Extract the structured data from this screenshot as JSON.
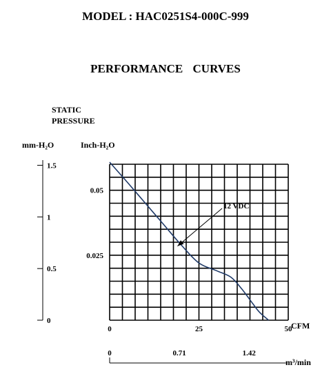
{
  "header": {
    "model": "MODEL : HAC0251S4-000C-999",
    "title": "PERFORMANCE    CURVES"
  },
  "y_axis": {
    "label_line1": "STATIC",
    "label_line2": "PRESSURE",
    "unit_mm": "mm-H₂O",
    "unit_inch": "Inch-H₂O"
  },
  "x_axis": {
    "unit_cfm": "CFM",
    "unit_cmm": "m³/min"
  },
  "annotation": {
    "label": "12 VDC"
  },
  "chart_data": {
    "type": "line",
    "title": "PERFORMANCE    CURVES",
    "xlabel": "CFM",
    "ylabel": "STATIC PRESSURE",
    "xlim": [
      0,
      50
    ],
    "ylim": [
      0,
      0.06
    ],
    "x_ticks": [
      "0",
      "25",
      "50"
    ],
    "y_ticks": [
      "0.025",
      "0.05"
    ],
    "secondary_x": {
      "label": "m³/min",
      "ticks": [
        {
          "value": 0,
          "label": "0"
        },
        {
          "value": 0.71,
          "label": "0.71"
        },
        {
          "value": 1.42,
          "label": "1.42"
        }
      ]
    },
    "secondary_y": {
      "label": "mm-H₂O",
      "ticks": [
        {
          "value": 0,
          "label": "0"
        },
        {
          "value": 0.5,
          "label": "0.5"
        },
        {
          "value": 1,
          "label": "1"
        },
        {
          "value": 1.5,
          "label": "1.5"
        }
      ]
    },
    "grid": true,
    "series": [
      {
        "name": "12 VDC",
        "color": "#1f3a68",
        "x": [
          0,
          5,
          10,
          15,
          20,
          25,
          30,
          34,
          37,
          40,
          42,
          44.5
        ],
        "y": [
          0.0608,
          0.053,
          0.045,
          0.037,
          0.029,
          0.022,
          0.019,
          0.0165,
          0.012,
          0.0065,
          0.003,
          0.0
        ]
      }
    ],
    "colors": {
      "grid": "#000000",
      "curve": "#1f3a68"
    }
  }
}
